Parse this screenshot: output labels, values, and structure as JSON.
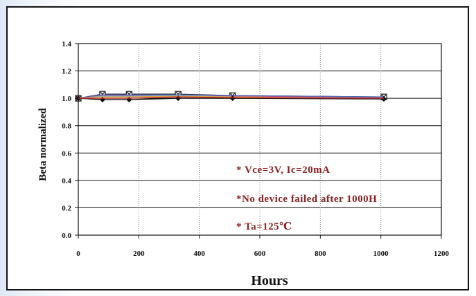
{
  "chart_data": {
    "type": "line",
    "xlabel": "Hours",
    "ylabel": "Beta normalized",
    "xlim": [
      0,
      1200
    ],
    "ylim": [
      0.0,
      1.4
    ],
    "x_ticks": [
      "0",
      "200",
      "400",
      "600",
      "800",
      "1000",
      "1200"
    ],
    "y_ticks": [
      "0.0",
      "0.2",
      "0.4",
      "0.6",
      "0.8",
      "1.0",
      "1.2",
      "1.4"
    ],
    "grid": {
      "horizontal": "solid",
      "vertical": "dotted"
    },
    "annotations": [
      "* Vce=3V, Ic=20mA",
      "*No device failed after 1000H",
      "* Ta=125℃"
    ],
    "x": [
      0,
      80,
      168,
      330,
      510,
      1010
    ],
    "series": [
      {
        "marker": "x-square",
        "color": "#1a1a1a",
        "values": [
          1.0,
          1.03,
          1.03,
          1.03,
          1.02,
          1.01
        ]
      },
      {
        "marker": "none",
        "color": "#4472c4",
        "values": [
          1.0,
          1.025,
          1.025,
          1.025,
          1.02,
          1.01
        ]
      },
      {
        "marker": "none",
        "color": "#a64d9b",
        "values": [
          1.0,
          1.02,
          1.02,
          1.02,
          1.015,
          1.005
        ]
      },
      {
        "marker": "none",
        "color": "#7bb6c9",
        "values": [
          1.0,
          1.015,
          1.015,
          1.02,
          1.01,
          1.0
        ]
      },
      {
        "marker": "none",
        "color": "#d9a13b",
        "values": [
          1.0,
          1.01,
          1.01,
          1.015,
          1.01,
          1.0
        ]
      },
      {
        "marker": "diamond",
        "color": "#111111",
        "values": [
          1.0,
          0.99,
          0.99,
          1.0,
          1.0,
          0.995
        ]
      },
      {
        "marker": "none",
        "color": "#c03030",
        "values": [
          1.0,
          1.0,
          1.0,
          1.01,
          1.005,
          1.0
        ]
      }
    ]
  }
}
